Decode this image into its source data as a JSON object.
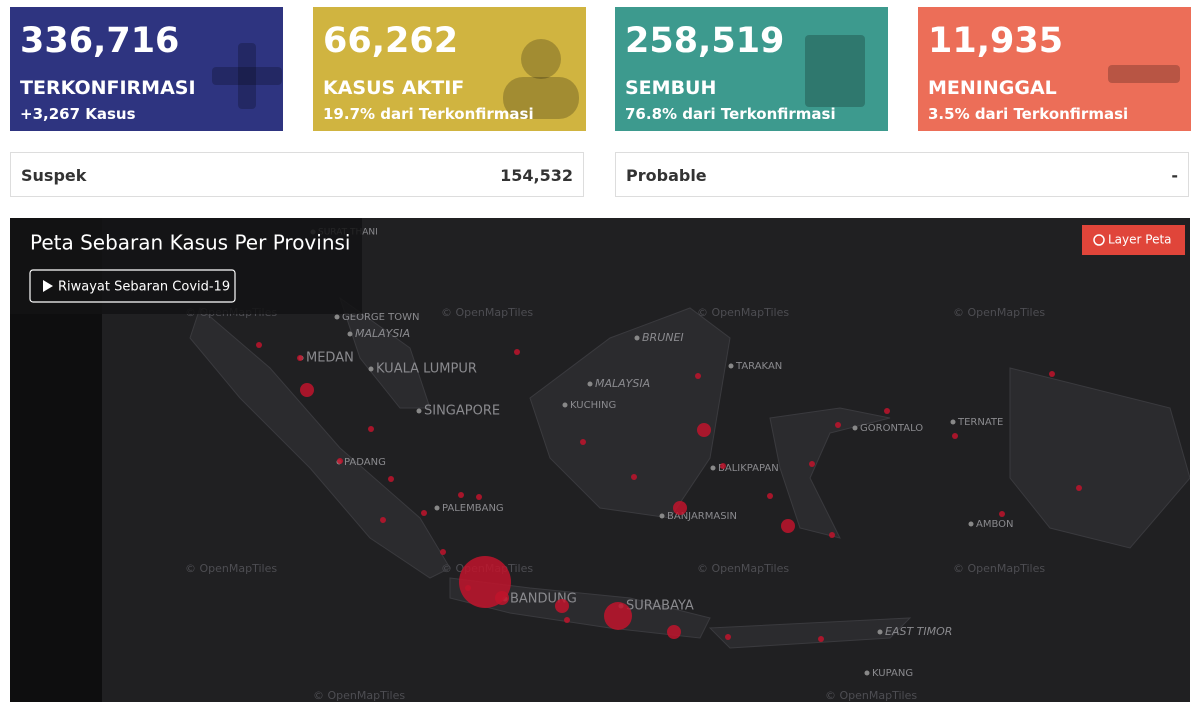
{
  "cards": [
    {
      "value": "336,716",
      "label": "TERKONFIRMASI",
      "sub": "+3,267 Kasus"
    },
    {
      "value": "66,262",
      "label": "KASUS AKTIF",
      "sub": "19.7% dari Terkonfirmasi"
    },
    {
      "value": "258,519",
      "label": "SEMBUH",
      "sub": "76.8% dari Terkonfirmasi"
    },
    {
      "value": "11,935",
      "label": "MENINGGAL",
      "sub": "3.5% dari Terkonfirmasi"
    }
  ],
  "summary": [
    {
      "label": "Suspek",
      "value": "154,532"
    },
    {
      "label": "Probable",
      "value": "-"
    }
  ],
  "map": {
    "title": "Peta Sebaran Kasus Per Provinsi",
    "history_button": "Riwayat Sebaran Covid-19",
    "layer_button": "Layer Peta",
    "watermark": "© OpenMapTiles",
    "places": [
      "SURAT THANI",
      "GEORGE TOWN",
      "MALAYSIA",
      "MEDAN",
      "KUALA LUMPUR",
      "SINGAPORE",
      "PADANG",
      "PALEMBANG",
      "BANDUNG",
      "SURABAYA",
      "KUCHING",
      "MALAYSIA",
      "BRUNEI",
      "TARAKAN",
      "BALIKPAPAN",
      "BANJARMASIN",
      "GORONTALO",
      "TERNATE",
      "AMBON",
      "EAST TIMOR",
      "KUPANG"
    ]
  }
}
